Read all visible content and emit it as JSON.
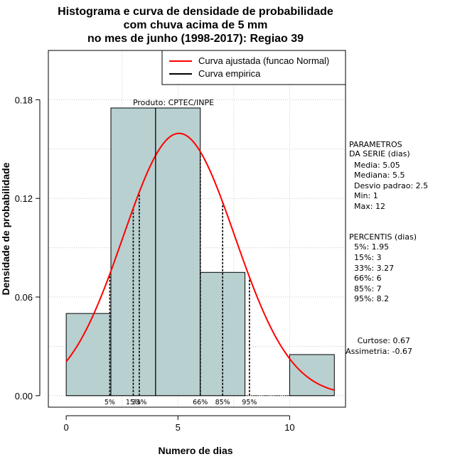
{
  "title_lines": [
    "Histograma e curva de densidade de probabilidade",
    "com chuva acima de 5 mm",
    "no mes de junho (1998-2017): Regiao 39"
  ],
  "xlabel": "Numero de dias",
  "ylabel": "Densidade de probabilidade",
  "credit": "Produto: CPTEC/INPE",
  "legend": {
    "fitted": "Curva ajustada (funcao Normal)",
    "empirical": "Curva empirica"
  },
  "colors": {
    "bar_fill": "#b9d0d0",
    "fitted_curve": "#ff0000",
    "empirical_curve": "#000000",
    "grid": "#c8c8c8"
  },
  "params": {
    "header1": "PARAMETROS",
    "header2": "DA SERIE (dias)",
    "media": "Media: 5.05",
    "mediana": "Mediana: 5.5",
    "desvio": "Desvio padrao: 2.5",
    "min": "Min: 1",
    "max": "Max: 12"
  },
  "percentis": {
    "header": "PERCENTIS (dias)",
    "items": [
      "5%: 1.95",
      "15%: 3",
      "33%: 3.27",
      "66%: 6",
      "85%: 7",
      "95%: 8.2"
    ]
  },
  "stats": {
    "curtose": "Curtose: 0.67",
    "assimetria": "Assimetria: -0.67"
  },
  "chart_data": {
    "type": "bar",
    "xlim": [
      -0.8,
      12.5
    ],
    "ylim": [
      -0.007,
      0.21
    ],
    "xticks": [
      0,
      5,
      10
    ],
    "yticks": [
      0.0,
      0.06,
      0.12,
      0.18
    ],
    "ytick_labels": [
      "0.00",
      "0.06",
      "0.12",
      "0.18"
    ],
    "bins": [
      {
        "x0": 0,
        "x1": 2,
        "density": 0.05
      },
      {
        "x0": 2,
        "x1": 4,
        "density": 0.175
      },
      {
        "x0": 4,
        "x1": 6,
        "density": 0.175
      },
      {
        "x0": 6,
        "x1": 8,
        "density": 0.075
      },
      {
        "x0": 8,
        "x1": 10,
        "density": 0.0
      },
      {
        "x0": 10,
        "x1": 12,
        "density": 0.025
      }
    ],
    "normal_fit": {
      "mean": 5.05,
      "sd": 2.5,
      "x_range": [
        0,
        12
      ]
    },
    "percentile_lines": [
      {
        "label": "5%",
        "x": 1.95
      },
      {
        "label": "15%",
        "x": 3
      },
      {
        "label": "33%",
        "x": 3.27
      },
      {
        "label": "66%",
        "x": 6
      },
      {
        "label": "85%",
        "x": 7
      },
      {
        "label": "95%",
        "x": 8.2
      }
    ]
  }
}
